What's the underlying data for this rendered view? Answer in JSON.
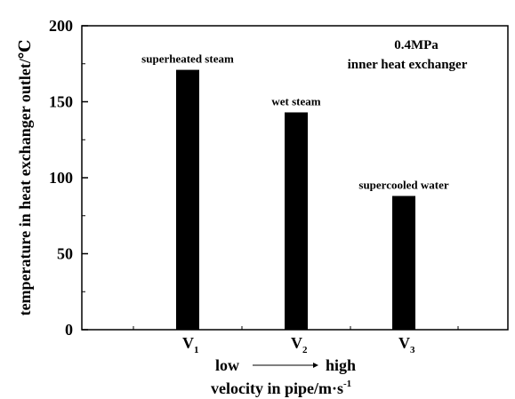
{
  "chart_data": {
    "type": "bar",
    "categories": [
      "V1",
      "V2",
      "V3"
    ],
    "category_labels": [
      {
        "main": "V",
        "sub": "1"
      },
      {
        "main": "V",
        "sub": "2"
      },
      {
        "main": "V",
        "sub": "3"
      }
    ],
    "values": [
      171,
      143,
      88
    ],
    "bar_labels": [
      "superheated steam",
      "wet steam",
      "supercooled water"
    ],
    "bar_color": "#000000",
    "ylim": [
      0,
      200
    ],
    "yticks": [
      0,
      50,
      100,
      150,
      200
    ],
    "ylabel": "temperature in heat exchanger outlet/℃",
    "xlabel": {
      "low": "low",
      "high": "high",
      "main": "velocity in pipe/m·s",
      "sup": "-1"
    },
    "annotation": [
      "0.4MPa",
      "inner heat exchanger"
    ],
    "grid": false,
    "legend": "none"
  }
}
